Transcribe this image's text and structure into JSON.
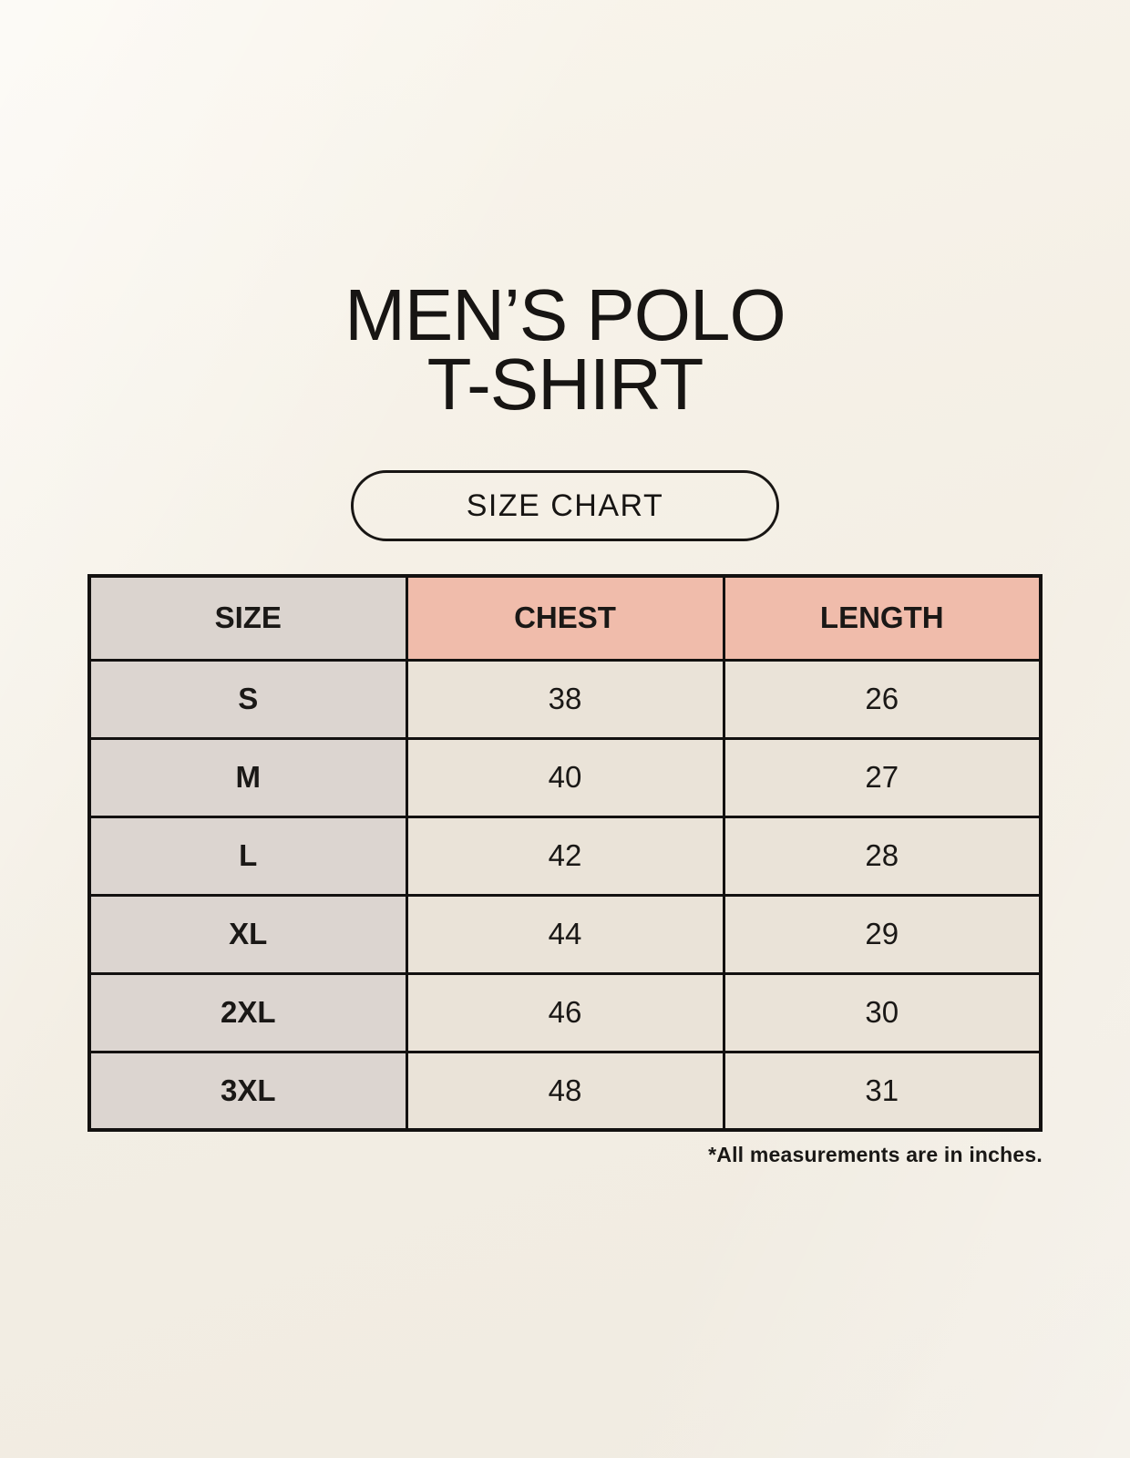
{
  "header": {
    "title_line1": "MEN’S POLO",
    "title_line2": "T-SHIRT",
    "badge_label": "SIZE CHART"
  },
  "chart_data": {
    "type": "table",
    "title": "MEN’S POLO T-SHIRT — SIZE CHART",
    "columns": [
      "SIZE",
      "CHEST",
      "LENGTH"
    ],
    "rows": [
      [
        "S",
        "38",
        "26"
      ],
      [
        "M",
        "40",
        "27"
      ],
      [
        "L",
        "42",
        "28"
      ],
      [
        "XL",
        "44",
        "29"
      ],
      [
        "2XL",
        "46",
        "30"
      ],
      [
        "3XL",
        "48",
        "31"
      ]
    ],
    "units": "inches",
    "note": "*All measurements are in inches."
  },
  "colors": {
    "background": "#f4efe5",
    "header_gray": "#dbd4cf",
    "header_salmon": "#f0bcab",
    "cell_cream": "#eae3d8",
    "border_black": "#131110",
    "text": "#171513"
  }
}
